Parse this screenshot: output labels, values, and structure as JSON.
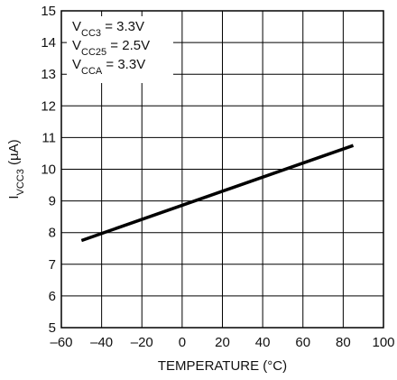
{
  "chart_data": {
    "type": "line",
    "title": "",
    "xlabel": "TEMPERATURE (°C)",
    "ylabel": {
      "main": "I",
      "sub": "VCC3",
      "unit": " (µA)"
    },
    "xlim": [
      -60,
      100
    ],
    "ylim": [
      5,
      15
    ],
    "x_ticks": [
      -60,
      -40,
      -20,
      0,
      20,
      40,
      60,
      80,
      100
    ],
    "x_tick_labels": [
      "–60",
      "–40",
      "–20",
      "0",
      "20",
      "40",
      "60",
      "80",
      "100"
    ],
    "y_ticks": [
      5,
      6,
      7,
      8,
      9,
      10,
      11,
      12,
      13,
      14,
      15
    ],
    "y_tick_labels": [
      "5",
      "6",
      "7",
      "8",
      "9",
      "10",
      "11",
      "12",
      "13",
      "14",
      "15"
    ],
    "grid": true,
    "series": [
      {
        "color": "#000000",
        "points": [
          {
            "x": -50,
            "y": 7.75
          },
          {
            "x": 85,
            "y": 10.75
          }
        ]
      }
    ],
    "annotation": {
      "placement": "top-left",
      "lines": [
        {
          "main": "V",
          "sub": "CC3",
          "rest": " = 3.3V"
        },
        {
          "main": "V",
          "sub": "CC25",
          "rest": " = 2.5V"
        },
        {
          "main": "V",
          "sub": "CCA",
          "rest": " = 3.3V"
        }
      ]
    }
  }
}
